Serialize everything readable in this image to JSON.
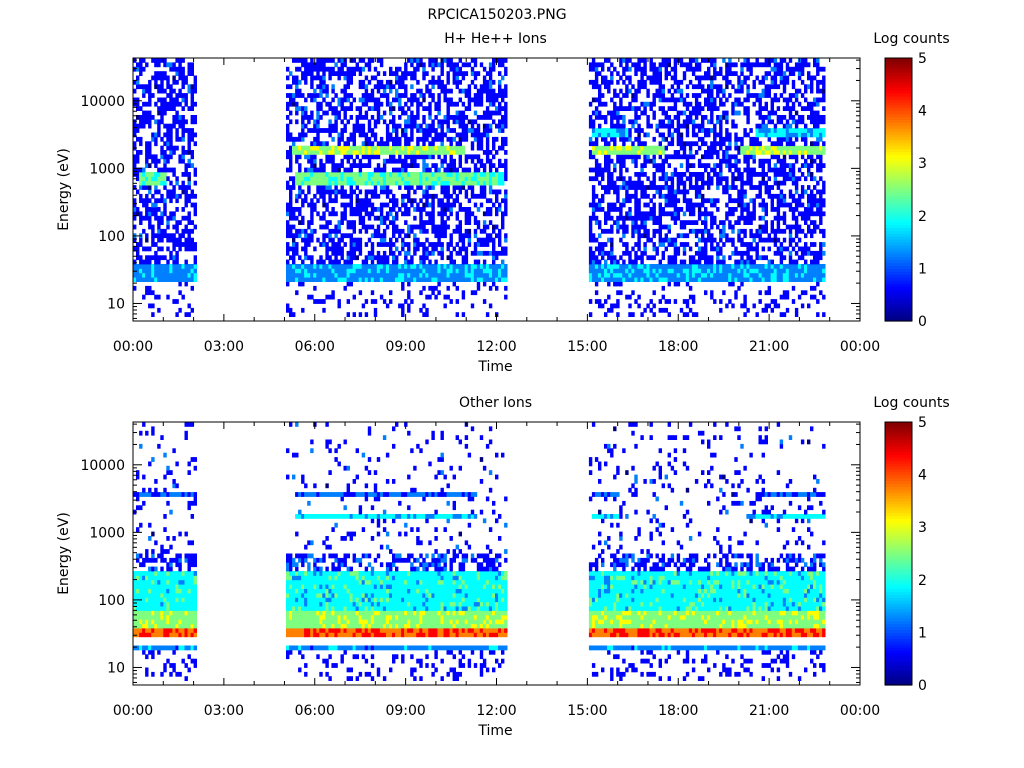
{
  "page": {
    "title": "RPCICA150203.PNG"
  },
  "colormap": [
    "#00007f",
    "#0000ff",
    "#007fff",
    "#00ffff",
    "#7fff7f",
    "#ffff00",
    "#ff7f00",
    "#ff0000",
    "#7f0000"
  ],
  "chart_data": [
    {
      "type": "heatmap",
      "title": "H+ He++ Ions",
      "xlabel": "Time",
      "ylabel": "Energy (eV)",
      "x_ticks": [
        "00:00",
        "03:00",
        "06:00",
        "09:00",
        "12:00",
        "15:00",
        "18:00",
        "21:00",
        "00:00"
      ],
      "xlim_hours": [
        0,
        24
      ],
      "y_scale": "log",
      "ylim_eV": [
        5.5,
        43000
      ],
      "y_ticks": [
        {
          "value": 10,
          "label": "10"
        },
        {
          "value": 100,
          "label": "100"
        },
        {
          "value": 1000,
          "label": "1000"
        },
        {
          "value": 10000,
          "label": "10000"
        }
      ],
      "colorbar": {
        "label": "Log counts",
        "min": 0,
        "max": 5,
        "ticks": [
          "0",
          "1",
          "2",
          "3",
          "4",
          "5"
        ]
      },
      "data_intervals_hours": [
        [
          0.0,
          2.1
        ],
        [
          5.05,
          12.25
        ],
        [
          15.05,
          22.85
        ]
      ],
      "bands": [
        {
          "emin_eV": 22,
          "emax_eV": 40,
          "level": 1.4
        },
        {
          "emin_eV": 1500,
          "emax_eV": 2100,
          "level": 2.6,
          "intervals_hours": [
            [
              5.2,
              10.9
            ],
            [
              15.1,
              17.5
            ],
            [
              20.0,
              22.85
            ]
          ]
        },
        {
          "emin_eV": 600,
          "emax_eV": 900,
          "level": 2.3,
          "intervals_hours": [
            [
              5.3,
              12.2
            ],
            [
              0.2,
              1.0
            ]
          ]
        },
        {
          "emin_eV": 3000,
          "emax_eV": 3700,
          "level": 1.7,
          "intervals_hours": [
            [
              15.1,
              16.3
            ],
            [
              20.5,
              22.85
            ]
          ]
        }
      ],
      "background": {
        "emin_eV": 40,
        "emax_eV": 43000,
        "level": 0.3,
        "density": 0.55
      },
      "low_energy_ticks": {
        "emin_eV": 6,
        "emax_eV": 20,
        "level": 0.5
      }
    },
    {
      "type": "heatmap",
      "title": "Other Ions",
      "xlabel": "Time",
      "ylabel": "Energy (eV)",
      "x_ticks": [
        "00:00",
        "03:00",
        "06:00",
        "09:00",
        "12:00",
        "15:00",
        "18:00",
        "21:00",
        "00:00"
      ],
      "xlim_hours": [
        0,
        24
      ],
      "y_scale": "log",
      "ylim_eV": [
        5.5,
        43000
      ],
      "y_ticks": [
        {
          "value": 10,
          "label": "10"
        },
        {
          "value": 100,
          "label": "100"
        },
        {
          "value": 1000,
          "label": "1000"
        },
        {
          "value": 10000,
          "label": "10000"
        }
      ],
      "colorbar": {
        "label": "Log counts",
        "min": 0,
        "max": 5,
        "ticks": [
          "0",
          "1",
          "2",
          "3",
          "4",
          "5"
        ]
      },
      "data_intervals_hours": [
        [
          0.0,
          2.1
        ],
        [
          5.05,
          12.25
        ],
        [
          15.05,
          22.85
        ]
      ],
      "bands": [
        {
          "emin_eV": 27,
          "emax_eV": 40,
          "level": 4.0
        },
        {
          "emin_eV": 18,
          "emax_eV": 22,
          "level": 1.3
        },
        {
          "emin_eV": 40,
          "emax_eV": 70,
          "level": 2.6
        },
        {
          "emin_eV": 70,
          "emax_eV": 250,
          "level": 1.9
        },
        {
          "emin_eV": 250,
          "emax_eV": 500,
          "level": 0.8,
          "density": 0.55
        },
        {
          "emin_eV": 3300,
          "emax_eV": 4200,
          "level": 1.0,
          "intervals_hours": [
            [
              5.3,
              11.3
            ],
            [
              15.1,
              16.0
            ],
            [
              20.5,
              22.85
            ],
            [
              0.0,
              2.1
            ]
          ]
        },
        {
          "emin_eV": 1500,
          "emax_eV": 2000,
          "level": 1.7,
          "intervals_hours": [
            [
              5.3,
              11.3
            ],
            [
              15.1,
              16.0
            ],
            [
              20.2,
              22.85
            ]
          ]
        }
      ],
      "background": {
        "emin_eV": 500,
        "emax_eV": 43000,
        "level": 0.3,
        "density": 0.1
      },
      "low_energy_ticks": {
        "emin_eV": 6,
        "emax_eV": 18,
        "level": 0.5
      }
    }
  ]
}
